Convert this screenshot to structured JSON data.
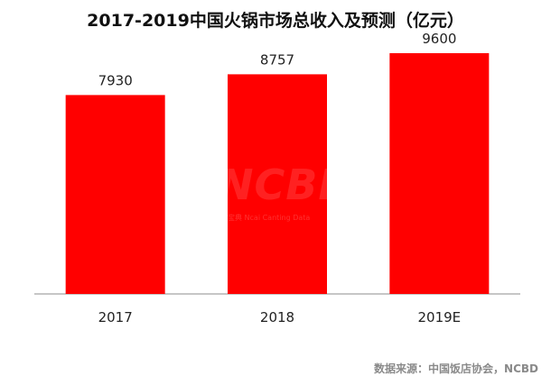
{
  "title": "2017-2019中国火锅市场总收入及预测（亿元）",
  "source": "数据来源：中国饭店协会，NCBD",
  "watermark": "NCBD",
  "watermark_sub": "餐宝典 Ncai Canting Data",
  "colors": {
    "bar": "#ff0000",
    "axis": "#8c8c8c",
    "label": "#222222"
  },
  "chart_data": {
    "type": "bar",
    "title": "2017-2019中国火锅市场总收入及预测（亿元）",
    "categories": [
      "2017",
      "2018",
      "2019E"
    ],
    "values": [
      7930,
      8757,
      9600
    ],
    "data_labels": [
      "7930",
      "8757",
      "9600"
    ],
    "ylim": [
      0,
      11000
    ],
    "grid": false,
    "legend": "none"
  }
}
